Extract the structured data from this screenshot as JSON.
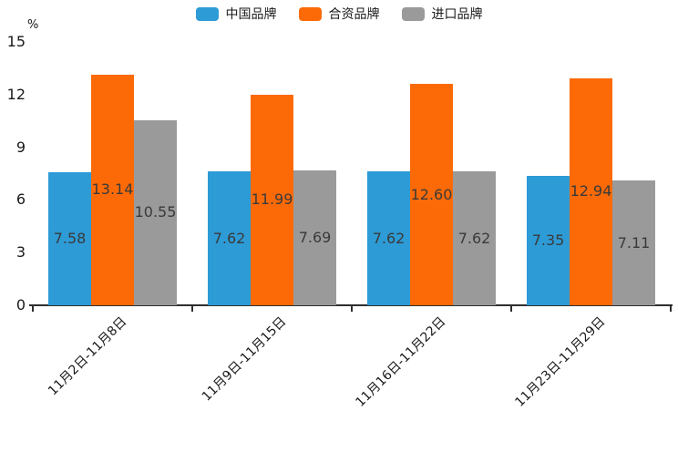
{
  "chart_data": {
    "type": "bar",
    "title": "",
    "ylabel": "%",
    "xlabel": "",
    "categories": [
      "11月2日-11月8日",
      "11月9日-11月15日",
      "11月16日-11月22日",
      "11月23日-11月29日"
    ],
    "series": [
      {
        "name": "中国品牌",
        "color": "#2D9BD6",
        "values": [
          7.58,
          7.62,
          7.62,
          7.35
        ]
      },
      {
        "name": "合资品牌",
        "color": "#FC6A07",
        "values": [
          13.14,
          11.99,
          12.6,
          12.94
        ]
      },
      {
        "name": "进口品牌",
        "color": "#9A9A9A",
        "values": [
          10.55,
          7.69,
          7.62,
          7.11
        ]
      }
    ],
    "ylim": [
      0,
      15
    ],
    "yticks": [
      0,
      3,
      6,
      9,
      12,
      15
    ],
    "value_label_decimals": 2,
    "x_label_rotation_deg": 45,
    "legend_position": "top",
    "grid": false,
    "bar_labels_inside": true
  },
  "colors": {
    "background": "#ffffff",
    "axis": "#2e2e2e",
    "tick_text": "#1a1a1a",
    "value_label_text": "#3a3a3a"
  }
}
